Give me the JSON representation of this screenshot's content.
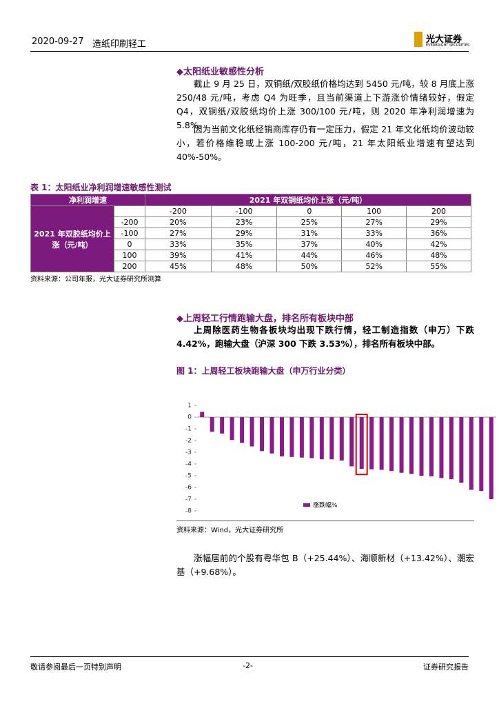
{
  "header": {
    "date": "2020-09-27",
    "sector": "造纸印刷轻工",
    "logo": "光大证券",
    "logo_sub": "EVERBRIGHT SECURITIES"
  },
  "section1": {
    "heading": "太阳纸业敏感性分析",
    "paragraphs": [
      "截止 9 月 25 日，双铜纸/双胶纸价格均达到 5450 元/吨，较 8 月底上涨 250/48 元/吨，考虑 Q4 为旺季，且当前渠道上下游涨价情绪较好，假定 Q4，双铜纸/双胶纸均价上涨 300/100 元/吨，则 2020 年净利润增速为 5.8%。",
      "因为当前文化纸经销商库存仍有一定压力，假定 21 年文化纸均价波动较小，若价格维稳或上涨 100-200 元/吨，21 年太阳纸业增速有望达到 40%-50%。"
    ]
  },
  "table": {
    "caption": "表 1：太阳纸业净利润增速敏感性测试",
    "corner": "净利润增速",
    "col_header": "2021 年双铜纸均价上涨（元/吨）",
    "row_header": "2021 年双胶纸均价上涨（元/吨）",
    "columns": [
      "-200",
      "-100",
      "0",
      "100",
      "200"
    ],
    "rows": [
      {
        "label": "-200",
        "cells": [
          "20%",
          "23%",
          "25%",
          "27%",
          "29%"
        ]
      },
      {
        "label": "-100",
        "cells": [
          "27%",
          "29%",
          "31%",
          "33%",
          "36%"
        ]
      },
      {
        "label": "0",
        "cells": [
          "33%",
          "35%",
          "37%",
          "40%",
          "42%"
        ]
      },
      {
        "label": "100",
        "cells": [
          "39%",
          "41%",
          "44%",
          "46%",
          "48%"
        ]
      },
      {
        "label": "200",
        "cells": [
          "45%",
          "48%",
          "50%",
          "52%",
          "55%"
        ]
      }
    ],
    "source": "资料来源：公司年报，光大证券研究所测算"
  },
  "section2": {
    "heading": "上周轻工行情跑输大盘，排名所有板块中部",
    "paragraph": "上周除医药生物各板块均出现下跌行情，轻工制造指数（申万）下跌 4.42%，跑输大盘（沪深 300 下跌 3.53%），排名所有板块中部。"
  },
  "figure": {
    "caption": "图 1：上周轻工板块跑输大盘（申万行业分类）",
    "source": "资料来源：Wind，光大证券研究所"
  },
  "chart_data": {
    "type": "bar",
    "categories": [
      null,
      null,
      null,
      null,
      null,
      null,
      null,
      null,
      null,
      null,
      null,
      null,
      null,
      null,
      null,
      null,
      null,
      null,
      null,
      null,
      null,
      null,
      null,
      null,
      null,
      null,
      null,
      null,
      null,
      null
    ],
    "series": [
      {
        "name": "涨跌幅%",
        "color": "#8b1a8b",
        "values": [
          0.45,
          -1.25,
          -1.4,
          -1.95,
          -2.2,
          -2.5,
          -2.9,
          -3.1,
          -3.35,
          -3.4,
          -3.45,
          -3.5,
          -3.6,
          -3.6,
          -3.7,
          -4.2,
          -4.42,
          -4.45,
          -4.5,
          -4.6,
          -4.75,
          -4.85,
          -5.0,
          -5.05,
          -5.2,
          -5.3,
          -5.6,
          -6.2,
          -6.3,
          -7.0
        ]
      }
    ],
    "ylim": [
      -8,
      1
    ],
    "yticks": [
      1,
      0,
      -1,
      -2,
      -3,
      -4,
      -5,
      -6,
      -7,
      -8
    ],
    "grid": false,
    "highlight": 16,
    "highlight_color": "#e00000",
    "legend": "bottom"
  },
  "closing": "涨幅居前的个股有粤华包 B（+25.44%）、海顺新材（+13.42%）、潮宏基（+9.68%）。",
  "footer": {
    "left": "敬请参阅最后一页特别声明",
    "page": "-2-",
    "right": "证券研究报告"
  }
}
